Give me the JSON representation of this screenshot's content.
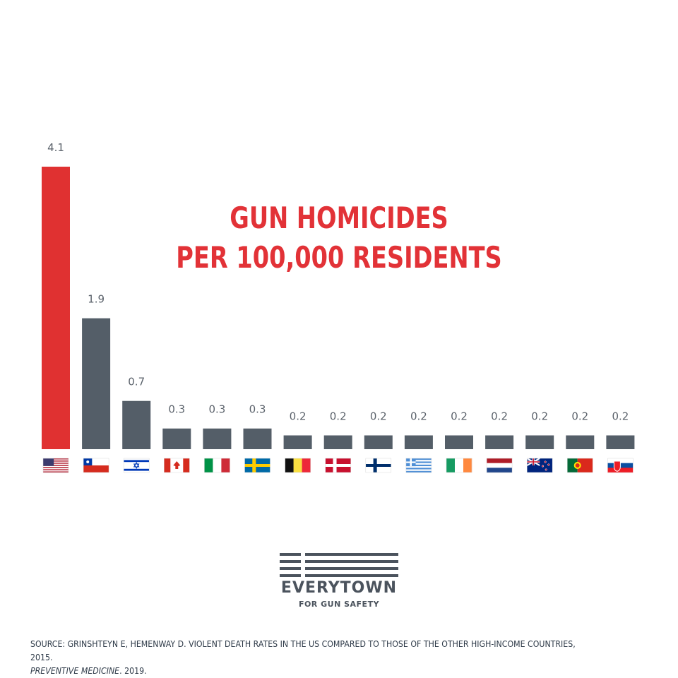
{
  "chart_data": {
    "type": "bar",
    "title_line1": "GUN HOMICIDES",
    "title_line2": "PER 100,000 RESIDENTS",
    "categories": [
      "us-flag",
      "chile-flag",
      "israel-flag",
      "canada-flag",
      "italy-flag",
      "sweden-flag",
      "belgium-flag",
      "denmark-flag",
      "finland-flag",
      "greece-flag",
      "ireland-flag",
      "netherlands-flag",
      "new-zealand-flag",
      "portugal-flag",
      "slovakia-flag"
    ],
    "values": [
      4.1,
      1.9,
      0.7,
      0.3,
      0.3,
      0.3,
      0.2,
      0.2,
      0.2,
      0.2,
      0.2,
      0.2,
      0.2,
      0.2,
      0.2
    ],
    "value_labels": [
      "4.1",
      "1.9",
      "0.7",
      "0.3",
      "0.3",
      "0.3",
      "0.2",
      "0.2",
      "0.2",
      "0.2",
      "0.2",
      "0.2",
      "0.2",
      "0.2",
      "0.2"
    ],
    "ylim": [
      0,
      4.1
    ],
    "xlabel": "",
    "ylabel": "",
    "grid": false,
    "colors": {
      "highlight": "#e03131",
      "default": "#545e68"
    }
  },
  "logo": {
    "name": "EVERYTOWN",
    "tagline": "FOR GUN SAFETY"
  },
  "source": {
    "line1": "SOURCE: GRINSHTEYN E, HEMENWAY D. VIOLENT DEATH RATES IN THE US COMPARED TO THOSE OF THE OTHER HIGH-INCOME COUNTRIES, 2015.",
    "journal": "PREVENTIVE MEDICINE",
    "year": ". 2019."
  }
}
